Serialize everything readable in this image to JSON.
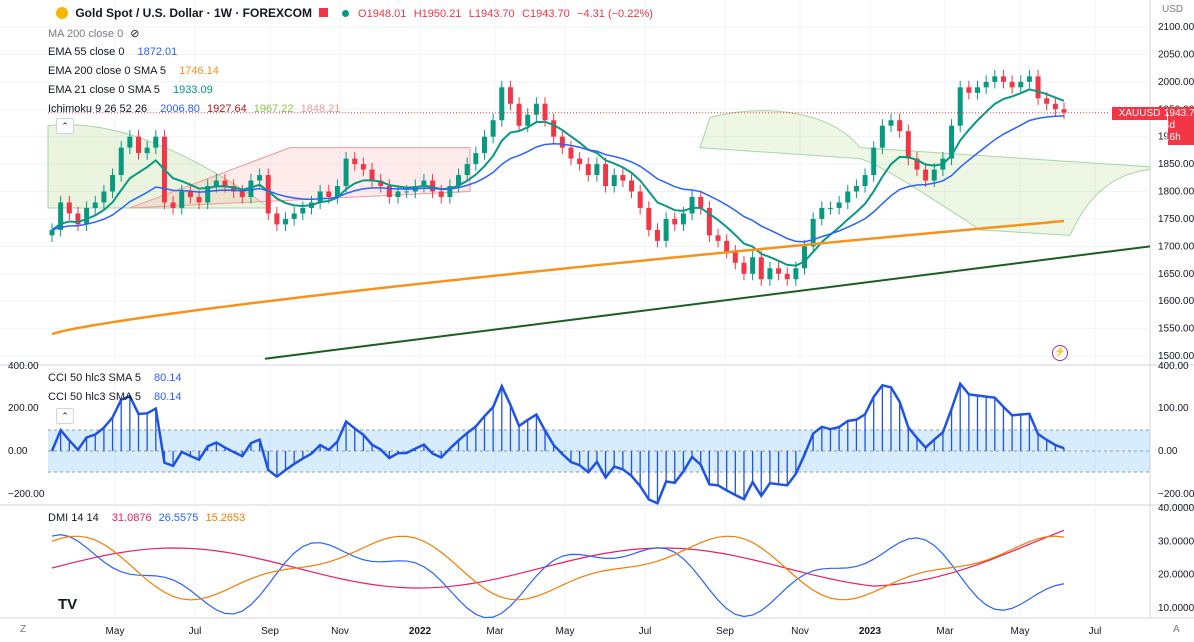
{
  "header": {
    "symbol_title": "Gold Spot / U.S. Dollar · 1W · FOREXCOM",
    "ohlc": {
      "o": "O1948.01",
      "h": "H1950.21",
      "l": "L1943.70",
      "c": "C1943.70",
      "chg": "−4.31 (−0.22%)"
    }
  },
  "indicators": {
    "ma200": {
      "label": "MA 200 close 0"
    },
    "ema55": {
      "label": "EMA 55 close 0",
      "value": "1872.01",
      "color": "#2962ff"
    },
    "ema200": {
      "label": "EMA 200 close 0 SMA 5",
      "value": "1746.14",
      "color": "#f7931a"
    },
    "ema21": {
      "label": "EMA 21 close 0 SMA 5",
      "value": "1933.09",
      "color": "#089981"
    },
    "ichimoku": {
      "label": "Ichimoku 9 26 52 26",
      "values": [
        "2006.80",
        "1927.64",
        "1967.22",
        "1848.21"
      ],
      "colors": [
        "#2962ff",
        "#b71c1c",
        "#8bc34a",
        "#ef9a9a"
      ]
    },
    "cci1": {
      "label": "CCI 50 hlc3 SMA 5",
      "value": "80.14"
    },
    "cci2": {
      "label": "CCI 50 hlc3 SMA 5",
      "value": "80.14"
    },
    "dmi": {
      "label": "DMI 14 14",
      "values": [
        "31.0876",
        "26.5575",
        "15.2653"
      ],
      "colors": [
        "#e91e63",
        "#2962ff",
        "#f57c00"
      ]
    }
  },
  "price_axis": {
    "currency": "USD",
    "ticks": [
      "2100.00",
      "2050.00",
      "2000.00",
      "1950.00",
      "1900.00",
      "1850.00",
      "1800.00",
      "1750.00",
      "1700.00",
      "1650.00",
      "1600.00",
      "1550.00",
      "1500.00"
    ],
    "last_label": {
      "symbol": "XAUUSD",
      "price": "1943.70",
      "countdown": "4d 16h"
    }
  },
  "cci_axis": {
    "ticks": [
      "400.00",
      "200.00",
      "0.00",
      "−200.00"
    ],
    "right_ticks": [
      "400.00",
      "100.00",
      "0.00",
      "−100.00",
      "−200.00"
    ]
  },
  "dmi_axis": {
    "ticks": [
      "40.0000",
      "30.0000",
      "20.0000",
      "10.0000"
    ]
  },
  "time_axis": {
    "labels": [
      "May",
      "Jul",
      "Sep",
      "Nov",
      "2022",
      "Mar",
      "May",
      "Jul",
      "Sep",
      "Nov",
      "2023",
      "Mar",
      "May",
      "Jul"
    ]
  },
  "chart_data": {
    "type": "candlestick",
    "title": "Gold Spot / U.S. Dollar · 1W · FOREXCOM",
    "ylim": [
      1500,
      2100
    ],
    "candles_close": [
      1730,
      1780,
      1760,
      1740,
      1770,
      1780,
      1800,
      1830,
      1880,
      1900,
      1870,
      1880,
      1900,
      1780,
      1770,
      1800,
      1790,
      1780,
      1810,
      1820,
      1810,
      1800,
      1790,
      1820,
      1830,
      1760,
      1740,
      1750,
      1760,
      1770,
      1780,
      1800,
      1790,
      1810,
      1860,
      1850,
      1840,
      1820,
      1810,
      1790,
      1800,
      1800,
      1810,
      1820,
      1800,
      1790,
      1810,
      1830,
      1850,
      1870,
      1900,
      1930,
      1990,
      1960,
      1920,
      1940,
      1960,
      1930,
      1900,
      1880,
      1860,
      1850,
      1830,
      1850,
      1810,
      1830,
      1820,
      1800,
      1770,
      1730,
      1710,
      1750,
      1740,
      1760,
      1790,
      1770,
      1720,
      1710,
      1690,
      1670,
      1650,
      1680,
      1640,
      1660,
      1650,
      1640,
      1660,
      1700,
      1750,
      1770,
      1770,
      1780,
      1800,
      1810,
      1830,
      1880,
      1920,
      1930,
      1910,
      1860,
      1840,
      1820,
      1840,
      1860,
      1920,
      1990,
      1980,
      1990,
      2000,
      2010,
      2000,
      1990,
      2000,
      2010,
      1970,
      1960,
      1950,
      1944
    ],
    "ema200": {
      "start": 1540,
      "end": 1746.14
    },
    "ema55": {
      "end": 1872.01
    },
    "ema21": {
      "end": 1933.09
    },
    "trendline": {
      "from": 1495,
      "to": 1700
    },
    "cci": {
      "last": 80.14,
      "ylim": [
        -200,
        400
      ]
    },
    "dmi": {
      "plus_di": 31.0876,
      "minus_di": 26.5575,
      "adx": 15.2653,
      "ylim": [
        10,
        40
      ]
    }
  }
}
